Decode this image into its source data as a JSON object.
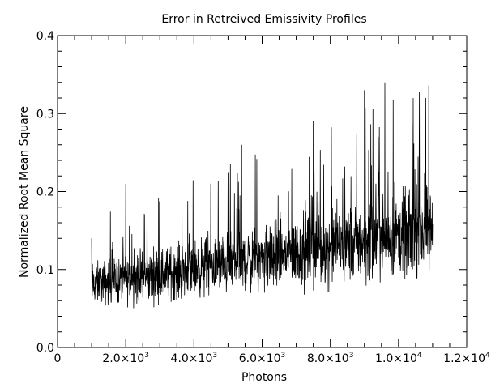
{
  "chart_data": {
    "type": "line",
    "title": "Error in Retreived Emissivity Profiles",
    "xlabel": "Photons",
    "ylabel": "Normalized Root Mean Square",
    "xlim": [
      0,
      12000
    ],
    "ylim": [
      0.0,
      0.4
    ],
    "grid": false,
    "legend": "none",
    "line_color": "#000000",
    "x_ticks": [
      {
        "value": 0,
        "mantissa": "0",
        "exponent": ""
      },
      {
        "value": 2000,
        "mantissa": "2.0×10",
        "exponent": "3"
      },
      {
        "value": 4000,
        "mantissa": "4.0×10",
        "exponent": "3"
      },
      {
        "value": 6000,
        "mantissa": "6.0×10",
        "exponent": "3"
      },
      {
        "value": 8000,
        "mantissa": "8.0×10",
        "exponent": "3"
      },
      {
        "value": 10000,
        "mantissa": "1.0×10",
        "exponent": "4"
      },
      {
        "value": 12000,
        "mantissa": "1.2×10",
        "exponent": "4"
      }
    ],
    "y_ticks": [
      {
        "value": 0.0,
        "label": "0.0"
      },
      {
        "value": 0.1,
        "label": "0.1"
      },
      {
        "value": 0.2,
        "label": "0.2"
      },
      {
        "value": 0.3,
        "label": "0.3"
      },
      {
        "value": 0.4,
        "label": "0.4"
      }
    ],
    "series": [
      {
        "x": [
          1000,
          11000
        ],
        "y_center": [
          0.08,
          0.15
        ],
        "y_spread": [
          0.03,
          0.06
        ],
        "notable_peaks": [
          {
            "x": 1000,
            "y": 0.14
          },
          {
            "x": 2000,
            "y": 0.21
          },
          {
            "x": 5400,
            "y": 0.26
          },
          {
            "x": 7500,
            "y": 0.29
          },
          {
            "x": 9000,
            "y": 0.33
          },
          {
            "x": 9600,
            "y": 0.34
          },
          {
            "x": 10800,
            "y": 0.32
          }
        ]
      }
    ]
  }
}
